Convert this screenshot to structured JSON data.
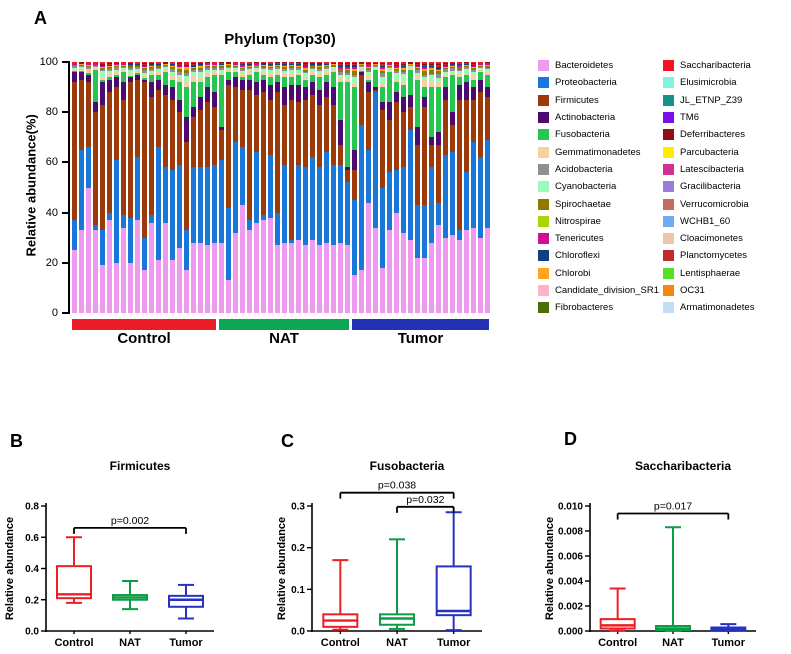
{
  "panels": {
    "a_letter": "A",
    "b_letter": "B",
    "c_letter": "C",
    "d_letter": "D"
  },
  "chart_data": [
    {
      "type": "stacked_bar",
      "panel": "A",
      "title": "Phylum (Top30)",
      "ylabel": "Relative abundance(%)",
      "ylim": [
        0,
        100
      ],
      "yticks": [
        0,
        20,
        40,
        60,
        80,
        100
      ],
      "grid": false,
      "groups": [
        {
          "label": "Control",
          "color": "#EC1C24",
          "count": 21
        },
        {
          "label": "NAT",
          "color": "#0CA655",
          "count": 19
        },
        {
          "label": "Tumor",
          "color": "#2430B4",
          "count": 20
        }
      ],
      "major_series": [
        {
          "name": "Bacteroidetes",
          "color": "#EE9AEE"
        },
        {
          "name": "Proteobacteria",
          "color": "#1877D8"
        },
        {
          "name": "Firmicutes",
          "color": "#9C3A0A"
        },
        {
          "name": "Actinobacteria",
          "color": "#4C0B70"
        },
        {
          "name": "Fusobacteria",
          "color": "#27C653"
        }
      ],
      "minor_series": [
        {
          "name": "Gemmatimonadetes",
          "color": "#F7CFA2",
          "weight": 2.2
        },
        {
          "name": "Cyanobacteria",
          "color": "#9CFBB5",
          "weight": 2.0
        },
        {
          "name": "Acidobacteria",
          "color": "#8F8F8F",
          "weight": 1.3
        },
        {
          "name": "Spirochaetae",
          "color": "#8F7A00",
          "weight": 1.2
        },
        {
          "name": "Chlorobi",
          "color": "#FFA41E",
          "weight": 0.7
        },
        {
          "name": "Tenericutes",
          "color": "#D10E8F",
          "weight": 0.6
        },
        {
          "name": "Chloroflexi",
          "color": "#123E85",
          "weight": 0.6
        },
        {
          "name": "Planctomycetes",
          "color": "#C42A2A",
          "weight": 0.5
        },
        {
          "name": "Deferribacteres",
          "color": "#8E0E12",
          "weight": 0.45
        },
        {
          "name": "Saccharibacteria",
          "color": "#F5121C",
          "weight": 0.45
        }
      ],
      "bars": [
        [
          25,
          12,
          55,
          4,
          0.5
        ],
        [
          33,
          32,
          28,
          3,
          0.5
        ],
        [
          50,
          16,
          26,
          3,
          0.5
        ],
        [
          33,
          2,
          45,
          4,
          13
        ],
        [
          19,
          14,
          50,
          9,
          1
        ],
        [
          37,
          3,
          48,
          5,
          1
        ],
        [
          20,
          41,
          29,
          4,
          1
        ],
        [
          34,
          5,
          46,
          7,
          4
        ],
        [
          20,
          18,
          54,
          2,
          0.5
        ],
        [
          37,
          25,
          31,
          2,
          0.5
        ],
        [
          17,
          13,
          62,
          1,
          0.5
        ],
        [
          36,
          3,
          47,
          6,
          3
        ],
        [
          21,
          45,
          23,
          4,
          2
        ],
        [
          36,
          22,
          29,
          4,
          5
        ],
        [
          21,
          36,
          28,
          5,
          3
        ],
        [
          26,
          33,
          21,
          5,
          7
        ],
        [
          17,
          16,
          35,
          10,
          12
        ],
        [
          28,
          30,
          20,
          4,
          10
        ],
        [
          28,
          30,
          23,
          5,
          6
        ],
        [
          27,
          31,
          26,
          6,
          4
        ],
        [
          28,
          31,
          23,
          6,
          7
        ],
        [
          28,
          33,
          12,
          1,
          21
        ],
        [
          13,
          29,
          49,
          2,
          3
        ],
        [
          32,
          36,
          22,
          4,
          2
        ],
        [
          43,
          23,
          23,
          4,
          1
        ],
        [
          33,
          4,
          52,
          4,
          2
        ],
        [
          36,
          28,
          23,
          5,
          4
        ],
        [
          37,
          2,
          49,
          5,
          2
        ],
        [
          38,
          25,
          22,
          6,
          3
        ],
        [
          27,
          13,
          48,
          4,
          3
        ],
        [
          28,
          31,
          24,
          7,
          4
        ],
        [
          28,
          1,
          56,
          6,
          3
        ],
        [
          29,
          30,
          25,
          7,
          4
        ],
        [
          27,
          31,
          27,
          5,
          3
        ],
        [
          29,
          33,
          25,
          5,
          3
        ],
        [
          27,
          31,
          25,
          6,
          5
        ],
        [
          28,
          36,
          22,
          6,
          3
        ],
        [
          27,
          32,
          24,
          7,
          6
        ],
        [
          28,
          31,
          8,
          10,
          15
        ],
        [
          27,
          25,
          5,
          1,
          34
        ],
        [
          15,
          30,
          12,
          8,
          25
        ],
        [
          17,
          58,
          20,
          1,
          0.5
        ],
        [
          44,
          21,
          23,
          4,
          1
        ],
        [
          34,
          54,
          1,
          1,
          7
        ],
        [
          18,
          32,
          31,
          3,
          6
        ],
        [
          33,
          23,
          21,
          7,
          12
        ],
        [
          40,
          17,
          27,
          4,
          4
        ],
        [
          32,
          26,
          22,
          6,
          5
        ],
        [
          29,
          44,
          9,
          5,
          10
        ],
        [
          22,
          21,
          24,
          7,
          19
        ],
        [
          22,
          21,
          39,
          4,
          4
        ],
        [
          28,
          30,
          9,
          3,
          20
        ],
        [
          35,
          9,
          23,
          5,
          18
        ],
        [
          30,
          33,
          22,
          5,
          4
        ],
        [
          31,
          33,
          11,
          5,
          15
        ],
        [
          29,
          4,
          52,
          6,
          3
        ],
        [
          33,
          23,
          29,
          7,
          3
        ],
        [
          34,
          34,
          17,
          5,
          3
        ],
        [
          30,
          32,
          26,
          5,
          3
        ],
        [
          34,
          35,
          17,
          4,
          5
        ]
      ],
      "legend": {
        "col1": [
          {
            "label": "Bacteroidetes",
            "color": "#EE9AEE"
          },
          {
            "label": "Proteobacteria",
            "color": "#1877D8"
          },
          {
            "label": "Firmicutes",
            "color": "#9C3A0A"
          },
          {
            "label": "Actinobacteria",
            "color": "#4C0B70"
          },
          {
            "label": "Fusobacteria",
            "color": "#27C653"
          },
          {
            "label": "Gemmatimonadetes",
            "color": "#F7CFA2"
          },
          {
            "label": "Acidobacteria",
            "color": "#8F8F8F"
          },
          {
            "label": "Cyanobacteria",
            "color": "#9CFBB5"
          },
          {
            "label": "Spirochaetae",
            "color": "#8F7A00"
          },
          {
            "label": "Nitrospirae",
            "color": "#A9D606"
          },
          {
            "label": "Tenericutes",
            "color": "#D10E8F"
          },
          {
            "label": "Chloroflexi",
            "color": "#123E85"
          },
          {
            "label": "Chlorobi",
            "color": "#FFA41E"
          },
          {
            "label": "Candidate_division_SR1",
            "color": "#FFB3C7"
          },
          {
            "label": "Fibrobacteres",
            "color": "#4D6D08"
          }
        ],
        "col2": [
          {
            "label": "Saccharibacteria",
            "color": "#F5121C"
          },
          {
            "label": "Elusimicrobia",
            "color": "#7FF4E3"
          },
          {
            "label": "JL_ETNP_Z39",
            "color": "#169189"
          },
          {
            "label": "TM6",
            "color": "#7A0FE8"
          },
          {
            "label": "Deferribacteres",
            "color": "#8E0E12"
          },
          {
            "label": "Parcubacteria",
            "color": "#FFEC00"
          },
          {
            "label": "Latescibacteria",
            "color": "#D23093"
          },
          {
            "label": "Gracilibacteria",
            "color": "#9B7CDD"
          },
          {
            "label": "Verrucomicrobia",
            "color": "#C66A63"
          },
          {
            "label": "WCHB1_60",
            "color": "#70AAF2"
          },
          {
            "label": "Cloacimonetes",
            "color": "#EAC6AA"
          },
          {
            "label": "Planctomycetes",
            "color": "#C42A2A"
          },
          {
            "label": "Lentisphaerae",
            "color": "#55E121"
          },
          {
            "label": "OC31",
            "color": "#F28A0E"
          },
          {
            "label": "Armatimonadetes",
            "color": "#C4DDF6"
          }
        ]
      }
    },
    {
      "type": "box",
      "panel": "B",
      "title": "Firmicutes",
      "ylabel": "Relative abundance",
      "ylim": [
        0,
        0.8
      ],
      "ytick_labels": [
        "0.0",
        "0.2",
        "0.4",
        "0.6",
        "0.8"
      ],
      "categories": [
        "Control",
        "NAT",
        "Tumor"
      ],
      "colors": [
        "#EC2024",
        "#0B9C45",
        "#2733C0"
      ],
      "stats": [
        {
          "min": 0.18,
          "q1": 0.21,
          "median": 0.235,
          "q3": 0.415,
          "max": 0.6
        },
        {
          "min": 0.14,
          "q1": 0.2,
          "median": 0.215,
          "q3": 0.23,
          "max": 0.32
        },
        {
          "min": 0.08,
          "q1": 0.155,
          "median": 0.2,
          "q3": 0.225,
          "max": 0.295
        }
      ],
      "brackets": [
        {
          "label": "p=0.002",
          "from": 0,
          "to": 2,
          "y": 0.66
        }
      ]
    },
    {
      "type": "box",
      "panel": "C",
      "title": "Fusobacteria",
      "ylabel": "Relative abundance",
      "ylim": [
        0,
        0.3
      ],
      "ytick_labels": [
        "0.0",
        "0.1",
        "0.2",
        "0.3"
      ],
      "categories": [
        "Control",
        "NAT",
        "Tumor"
      ],
      "colors": [
        "#EC2024",
        "#0B9C45",
        "#2733C0"
      ],
      "stats": [
        {
          "min": 0.003,
          "q1": 0.01,
          "median": 0.025,
          "q3": 0.04,
          "max": 0.17
        },
        {
          "min": 0.005,
          "q1": 0.015,
          "median": 0.03,
          "q3": 0.04,
          "max": 0.22
        },
        {
          "min": 0.002,
          "q1": 0.038,
          "median": 0.048,
          "q3": 0.155,
          "max": 0.285
        }
      ],
      "brackets": [
        {
          "label": "p=0.038",
          "from": 0,
          "to": 2,
          "y": 0.332
        },
        {
          "label": "p=0.032",
          "from": 1,
          "to": 2,
          "y": 0.298
        }
      ]
    },
    {
      "type": "box",
      "panel": "D",
      "title": "Saccharibacteria",
      "ylabel": "Relative abundance",
      "ylim": [
        0,
        0.01
      ],
      "ytick_labels": [
        "0.000",
        "0.002",
        "0.004",
        "0.006",
        "0.008",
        "0.010"
      ],
      "categories": [
        "Control",
        "NAT",
        "Tumor"
      ],
      "colors": [
        "#EC2024",
        "#0B9C45",
        "#2733C0"
      ],
      "stats": [
        {
          "min": 3e-05,
          "q1": 0.0002,
          "median": 0.00045,
          "q3": 0.00095,
          "max": 0.0034
        },
        {
          "min": 2e-05,
          "q1": 8e-05,
          "median": 0.0002,
          "q3": 0.0004,
          "max": 0.0083
        },
        {
          "min": 1e-05,
          "q1": 6e-05,
          "median": 0.00015,
          "q3": 0.00028,
          "max": 0.00055
        }
      ],
      "brackets": [
        {
          "label": "p=0.017",
          "from": 0,
          "to": 2,
          "y": 0.0094
        }
      ]
    }
  ]
}
